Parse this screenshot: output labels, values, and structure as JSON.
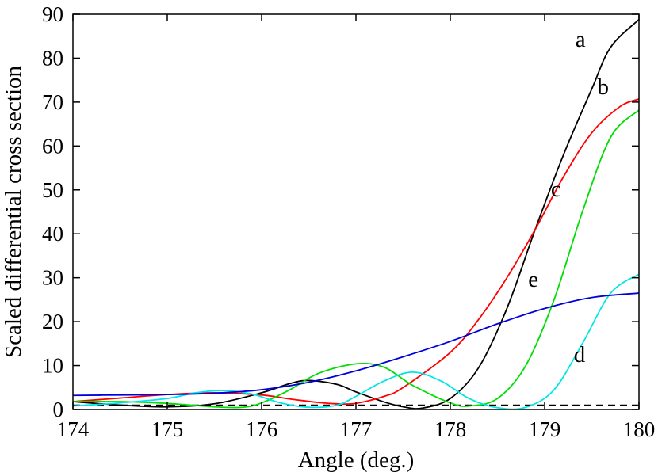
{
  "chart_data": {
    "type": "line",
    "title": "",
    "xlabel": "Angle (deg.)",
    "ylabel": "Scaled differential cross section",
    "xlim": [
      174,
      180
    ],
    "ylim": [
      0,
      90
    ],
    "xticks": [
      174,
      175,
      176,
      177,
      178,
      179,
      180
    ],
    "yticks": [
      0,
      10,
      20,
      30,
      40,
      50,
      60,
      70,
      80,
      90
    ],
    "grid": false,
    "legend": "none",
    "reference_line": {
      "y": 1,
      "style": "dashed",
      "color": "#000000"
    },
    "series": [
      {
        "name": "a",
        "color": "#000000",
        "x": [
          174,
          174.5,
          175,
          175.5,
          176,
          176.3,
          176.5,
          176.8,
          177,
          177.3,
          177.5,
          177.7,
          178,
          178.3,
          178.6,
          178.9,
          179.2,
          179.5,
          179.7,
          180
        ],
        "y": [
          1.8,
          1.0,
          0.6,
          1.3,
          3.8,
          5.9,
          6.6,
          5.7,
          4.0,
          1.7,
          0.6,
          0.3,
          2.5,
          9.5,
          23.0,
          41.0,
          58.0,
          73.0,
          82.5,
          88.8
        ]
      },
      {
        "name": "b",
        "color": "#ff0000",
        "x": [
          174,
          174.5,
          175,
          175.5,
          176,
          176.3,
          176.6,
          176.8,
          177,
          177.3,
          177.5,
          178,
          178.3,
          178.6,
          178.9,
          179.2,
          179.5,
          179.8,
          180
        ],
        "y": [
          1.8,
          2.6,
          3.4,
          3.8,
          3.3,
          2.4,
          1.6,
          1.3,
          1.4,
          3.0,
          5.0,
          13.0,
          20.5,
          30.0,
          41.0,
          53.0,
          63.0,
          69.0,
          70.7
        ]
      },
      {
        "name": "c",
        "color": "#00dd00",
        "x": [
          174,
          174.5,
          175,
          175.5,
          175.8,
          176,
          176.3,
          176.6,
          177,
          177.3,
          177.6,
          178,
          178.2,
          178.5,
          178.8,
          179.1,
          179.4,
          179.7,
          180
        ],
        "y": [
          1.8,
          1.8,
          1.4,
          0.6,
          0.5,
          1.5,
          4.5,
          8.2,
          10.4,
          9.6,
          5.5,
          1.5,
          0.8,
          2.5,
          10.0,
          25.0,
          45.0,
          62.0,
          68.2
        ]
      },
      {
        "name": "d",
        "color": "#00e5e5",
        "x": [
          174,
          174.5,
          175,
          175.3,
          175.6,
          175.9,
          176.2,
          176.5,
          176.8,
          177,
          177.3,
          177.6,
          177.9,
          178.2,
          178.5,
          178.8,
          179.1,
          179.4,
          179.7,
          180
        ],
        "y": [
          0.8,
          1.5,
          2.5,
          3.8,
          4.3,
          3.5,
          1.5,
          0.5,
          1.0,
          3.0,
          6.5,
          8.5,
          6.5,
          2.5,
          0.4,
          0.5,
          4.5,
          15.0,
          26.5,
          30.8
        ]
      },
      {
        "name": "e",
        "color": "#0000dd",
        "x": [
          174,
          174.5,
          175,
          175.5,
          176,
          176.5,
          177,
          177.5,
          178,
          178.5,
          179,
          179.5,
          180
        ],
        "y": [
          3.2,
          3.3,
          3.4,
          3.7,
          4.5,
          6.2,
          8.8,
          12.0,
          15.5,
          19.5,
          23.0,
          25.5,
          26.5
        ]
      }
    ],
    "annotations": [
      {
        "text": "a",
        "x": 179.38,
        "y": 82.6
      },
      {
        "text": "b",
        "x": 179.62,
        "y": 71.8
      },
      {
        "text": "c",
        "x": 179.12,
        "y": 48.5
      },
      {
        "text": "e",
        "x": 178.88,
        "y": 28.0
      },
      {
        "text": "d",
        "x": 179.37,
        "y": 10.8
      }
    ]
  }
}
